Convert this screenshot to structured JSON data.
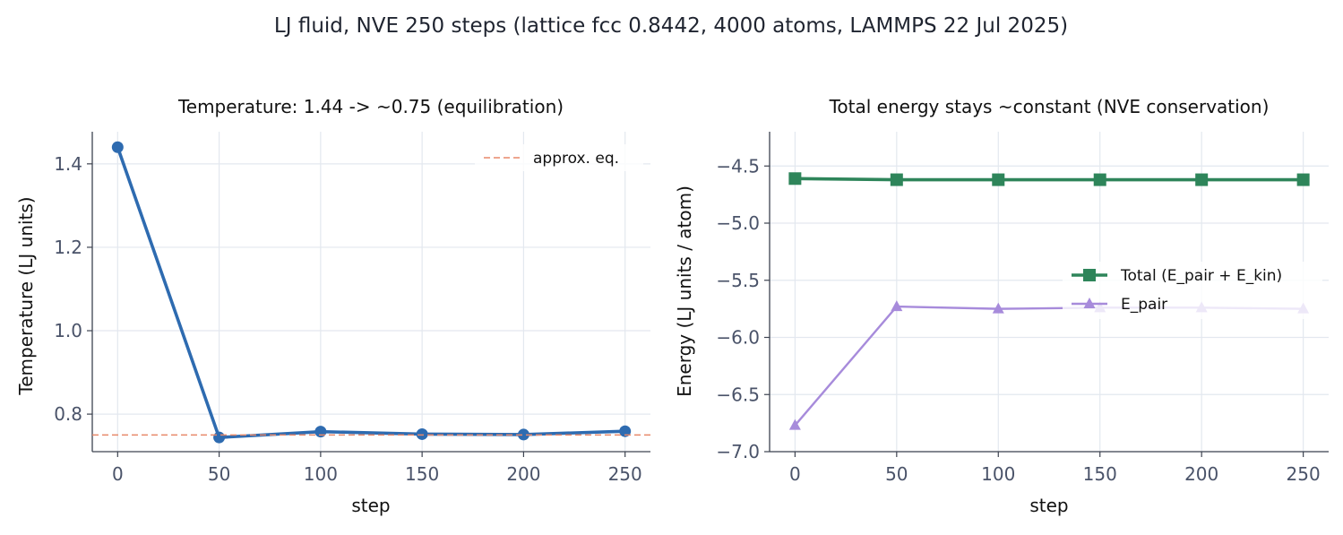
{
  "figure": {
    "suptitle": "LJ fluid, NVE 250 steps  (lattice fcc 0.8442, 4000 atoms, LAMMPS 22 Jul 2025)"
  },
  "chart_data": [
    {
      "type": "line",
      "title": "Temperature: 1.44 -> ~0.75 (equilibration)",
      "xlabel": "step",
      "ylabel": "Temperature  (LJ units)",
      "xlim": [
        -12.5,
        262.5
      ],
      "ylim": [
        0.71,
        1.477
      ],
      "xticks": [
        0,
        50,
        100,
        150,
        200,
        250
      ],
      "yticks": [
        0.8,
        1.0,
        1.2,
        1.4
      ],
      "xtick_labels": [
        "0",
        "50",
        "100",
        "150",
        "200",
        "250"
      ],
      "ytick_labels": [
        "0.8",
        "1.0",
        "1.2",
        "1.4"
      ],
      "grid": true,
      "legend_position": "upper right",
      "series": [
        {
          "name": "",
          "x": [
            0,
            50,
            100,
            150,
            200,
            250
          ],
          "y": [
            1.44,
            0.744,
            0.758,
            0.752,
            0.751,
            0.759
          ],
          "color": "#2e6bb0",
          "marker": "circle",
          "line": "solid"
        },
        {
          "name": "approx. eq.",
          "hline": 0.75,
          "color": "#e8896a",
          "line": "dashed"
        }
      ]
    },
    {
      "type": "line",
      "title": "Total energy stays ~constant (NVE conservation)",
      "xlabel": "step",
      "ylabel": "Energy  (LJ units / atom)",
      "xlim": [
        -12.5,
        262.5
      ],
      "ylim": [
        -7.0,
        -4.2
      ],
      "xticks": [
        0,
        50,
        100,
        150,
        200,
        250
      ],
      "yticks": [
        -4.5,
        -5.0,
        -5.5,
        -6.0,
        -6.5,
        -7.0
      ],
      "xtick_labels": [
        "0",
        "50",
        "100",
        "150",
        "200",
        "250"
      ],
      "ytick_labels": [
        "−4.5",
        "−5.0",
        "−5.5",
        "−6.0",
        "−6.5",
        "−7.0"
      ],
      "grid": true,
      "legend_position": "center right",
      "series": [
        {
          "name": "Total (E_pair + E_kin)",
          "x": [
            0,
            50,
            100,
            150,
            200,
            250
          ],
          "y": [
            -4.61,
            -4.62,
            -4.62,
            -4.62,
            -4.62,
            -4.62
          ],
          "color": "#2e855a",
          "marker": "square",
          "line": "solid"
        },
        {
          "name": "E_pair",
          "x": [
            0,
            50,
            100,
            150,
            200,
            250
          ],
          "y": [
            -6.77,
            -5.73,
            -5.75,
            -5.74,
            -5.74,
            -5.75
          ],
          "color": "#a78bdb",
          "marker": "triangle",
          "line": "solid"
        }
      ]
    }
  ]
}
